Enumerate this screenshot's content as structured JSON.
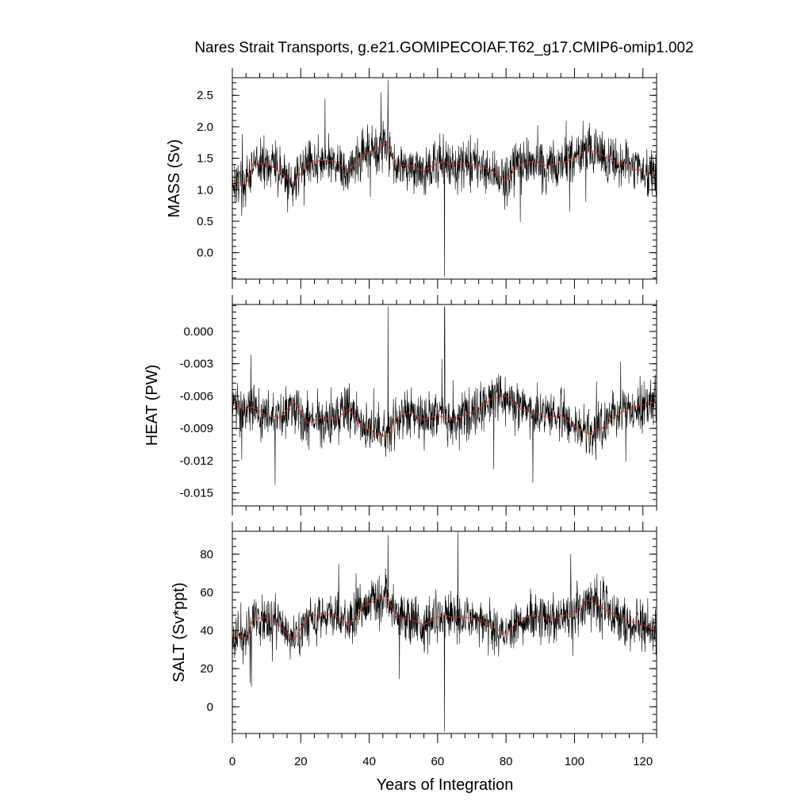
{
  "chart_data": {
    "title": "Nares Strait Transports, g.e21.GOMIPECOIAF.T62_g17.CMIP6-omip1.002",
    "xlabel": "Years of Integration",
    "x_range": [
      0,
      124
    ],
    "x_ticks": [
      "0",
      "20",
      "40",
      "60",
      "80",
      "100",
      "120"
    ],
    "x_tick_values": [
      0,
      20,
      40,
      60,
      80,
      100,
      120
    ],
    "type": "line",
    "series_colors": {
      "monthly": "#000000",
      "annual_mean": "#e0302a"
    },
    "panels": [
      {
        "ylabel": "MASS (Sv)",
        "ylim": [
          -0.42,
          2.78
        ],
        "y_ticks": [
          "2.5",
          "2.0",
          "1.5",
          "1.0",
          "0.5",
          "0.0"
        ],
        "y_tick_values": [
          2.5,
          2.0,
          1.5,
          1.0,
          0.5,
          0.0
        ],
        "annual_mean": {
          "years": [
            0,
            4,
            6,
            10,
            14,
            18,
            22,
            26,
            30,
            34,
            38,
            42,
            45,
            48,
            52,
            56,
            60,
            62,
            64,
            68,
            72,
            76,
            80,
            84,
            88,
            92,
            96,
            100,
            104,
            108,
            112,
            116,
            120,
            124
          ],
          "values": [
            1.15,
            1.08,
            1.4,
            1.42,
            1.28,
            1.1,
            1.42,
            1.47,
            1.45,
            1.3,
            1.55,
            1.65,
            1.75,
            1.4,
            1.38,
            1.3,
            1.42,
            1.45,
            1.4,
            1.42,
            1.38,
            1.3,
            1.15,
            1.4,
            1.45,
            1.38,
            1.42,
            1.5,
            1.65,
            1.55,
            1.45,
            1.35,
            1.3,
            1.2
          ]
        },
        "min_value": -0.38,
        "max_value": 2.75
      },
      {
        "ylabel": "HEAT (PW)",
        "ylim": [
          -0.0162,
          0.0025
        ],
        "y_ticks": [
          "0.000",
          "-0.003",
          "-0.006",
          "-0.009",
          "-0.012",
          "-0.015"
        ],
        "y_tick_values": [
          0.0,
          -0.003,
          -0.006,
          -0.009,
          -0.012,
          -0.015
        ],
        "annual_mean": {
          "years": [
            0,
            4,
            6,
            10,
            14,
            18,
            22,
            26,
            30,
            34,
            38,
            42,
            45,
            48,
            52,
            56,
            60,
            62,
            64,
            68,
            72,
            76,
            80,
            84,
            88,
            92,
            96,
            100,
            104,
            108,
            112,
            116,
            120,
            124
          ],
          "values": [
            -0.0068,
            -0.0072,
            -0.007,
            -0.0078,
            -0.008,
            -0.0065,
            -0.0085,
            -0.008,
            -0.0082,
            -0.0072,
            -0.0088,
            -0.0095,
            -0.0098,
            -0.008,
            -0.0075,
            -0.0082,
            -0.0078,
            -0.008,
            -0.0082,
            -0.0078,
            -0.0072,
            -0.0062,
            -0.006,
            -0.0072,
            -0.0075,
            -0.008,
            -0.0078,
            -0.0088,
            -0.0095,
            -0.009,
            -0.0078,
            -0.0072,
            -0.0068,
            -0.0065
          ]
        },
        "min_value": -0.0157,
        "max_value": 0.0023
      },
      {
        "ylabel": "SALT (Sv*ppt)",
        "ylim": [
          -14,
          92
        ],
        "y_ticks": [
          "80",
          "60",
          "40",
          "20",
          "0"
        ],
        "y_tick_values": [
          80,
          60,
          40,
          20,
          0
        ],
        "annual_mean": {
          "years": [
            0,
            4,
            6,
            10,
            14,
            18,
            22,
            26,
            30,
            34,
            38,
            42,
            45,
            48,
            52,
            56,
            60,
            62,
            64,
            68,
            72,
            76,
            80,
            84,
            88,
            92,
            96,
            100,
            104,
            108,
            112,
            116,
            120,
            124
          ],
          "values": [
            38,
            36,
            46,
            47,
            42,
            35,
            47,
            49,
            48,
            43,
            52,
            56,
            58,
            47,
            46,
            43,
            47,
            48,
            47,
            47,
            46,
            42,
            38,
            46,
            48,
            46,
            47,
            50,
            56,
            52,
            48,
            45,
            43,
            40
          ]
        },
        "min_value": -13,
        "max_value": 90
      }
    ]
  }
}
